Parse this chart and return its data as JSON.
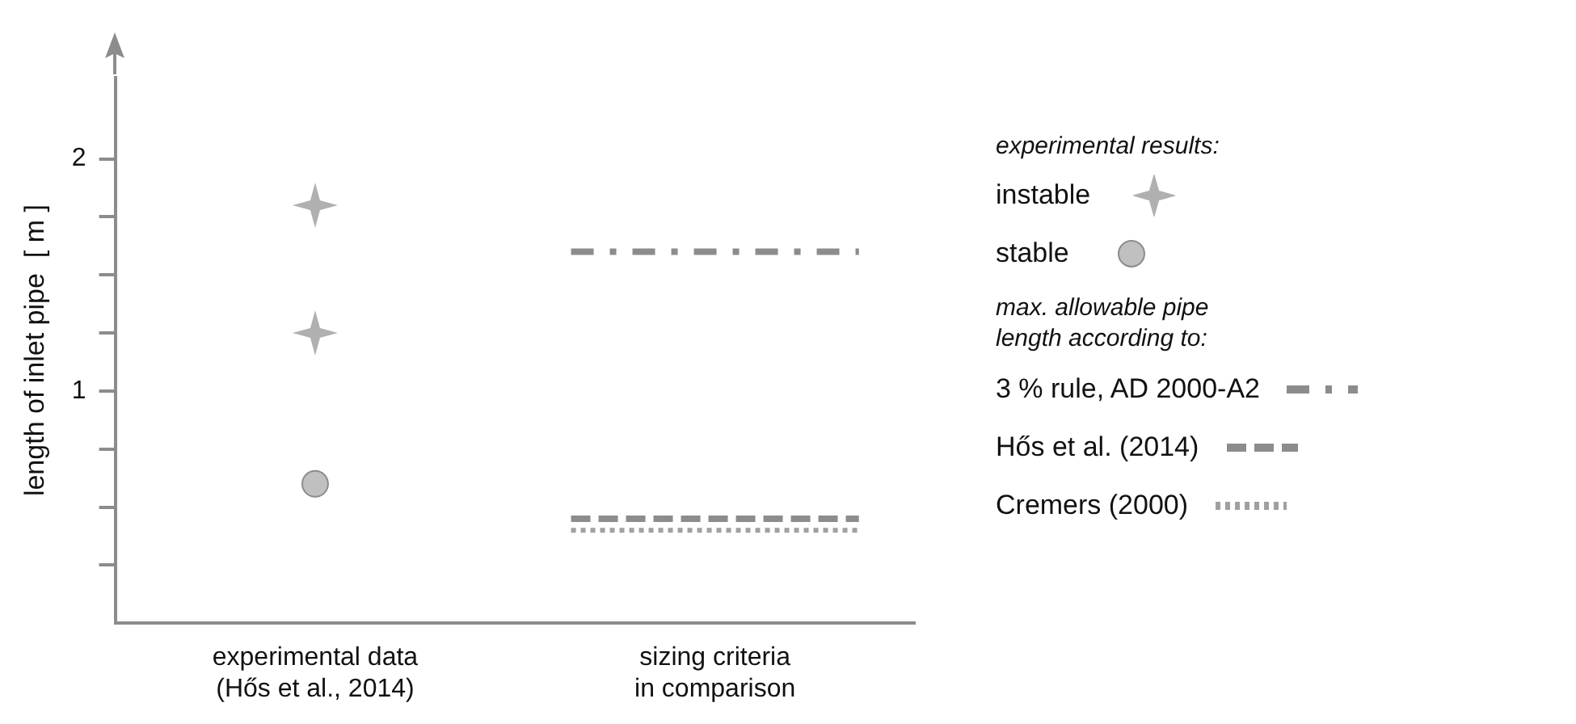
{
  "chart_data": {
    "type": "scatter",
    "ylabel": "length of inlet pipe  [ m ]",
    "categories": [
      "experimental data\n(Hős et al., 2014)",
      "sizing criteria\nin comparison"
    ],
    "ylim": [
      0,
      2.35
    ],
    "yticks": [
      {
        "value": 0.25,
        "label": null
      },
      {
        "value": 0.5,
        "label": null
      },
      {
        "value": 0.75,
        "label": null
      },
      {
        "value": 1,
        "label": "1"
      },
      {
        "value": 1.25,
        "label": null
      },
      {
        "value": 1.5,
        "label": null
      },
      {
        "value": 1.75,
        "label": null
      },
      {
        "value": 2,
        "label": "2"
      }
    ],
    "grid": false,
    "legend": "right",
    "legend_title": "experimental results:",
    "annotations": [
      "max. allowable pipe\nlength according to:"
    ],
    "series": [
      {
        "name": "instable",
        "type": "scatter",
        "marker": "star",
        "color": "#b0b0b0",
        "x": [
          "experimental data\n(Hős et al., 2014)",
          "experimental data\n(Hős et al., 2014)"
        ],
        "values": [
          1.8,
          1.25
        ]
      },
      {
        "name": "stable",
        "type": "scatter",
        "marker": "circle",
        "color": "#c0c0c0",
        "x": [
          "experimental data\n(Hős et al., 2014)"
        ],
        "values": [
          0.6
        ]
      }
    ],
    "ref_lines": [
      {
        "axis": "y",
        "value": 1.6,
        "label": "3 % rule, AD 2000-A2",
        "color": "#8c8c8c",
        "line_style": "dashdot"
      },
      {
        "axis": "y",
        "value": 0.45,
        "label": "Hős et al. (2014)",
        "color": "#8c8c8c",
        "line_style": "dashed"
      },
      {
        "axis": "y",
        "value": 0.4,
        "label": "Cremers (2000)",
        "color": "#a0a0a0",
        "line_style": "dotted"
      }
    ]
  }
}
